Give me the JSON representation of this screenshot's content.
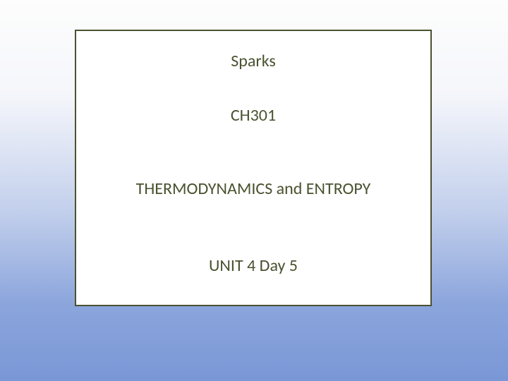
{
  "slide": {
    "background_gradient": {
      "stops": [
        "#fdfdfd",
        "#f5f6fb",
        "#c3d0ec",
        "#8ba5dc",
        "#7a97d6"
      ],
      "positions": [
        0,
        25,
        55,
        80,
        100
      ]
    },
    "content_box": {
      "border_color": "#4a5230",
      "border_width": 2,
      "background_color": "#ffffff",
      "text_color": "#4a5230",
      "font_size": 24,
      "font_family": "Calibri",
      "lines": {
        "instructor": "Sparks",
        "course": "CH301",
        "topic": "THERMODYNAMICS and ENTROPY",
        "unit": "UNIT 4 Day 5"
      }
    }
  }
}
